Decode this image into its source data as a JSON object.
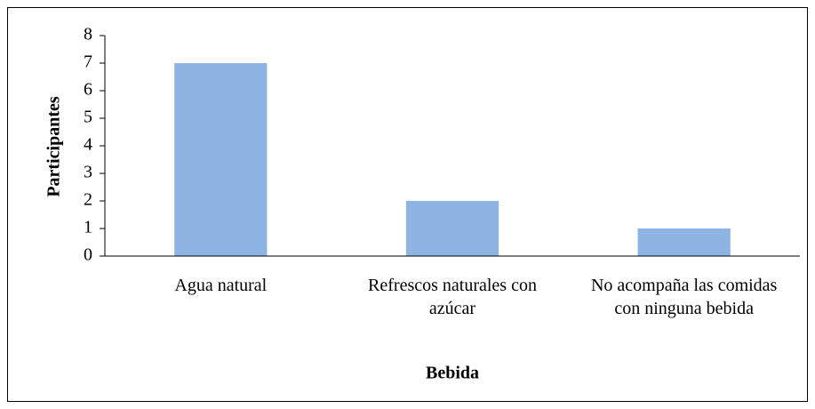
{
  "chart_data": {
    "type": "bar",
    "categories": [
      "Agua natural",
      "Refrescos naturales con azúcar",
      "No acompaña las comidas con ninguna bebida"
    ],
    "values": [
      7,
      2,
      1
    ],
    "color": "#8eb4e3",
    "ylim": [
      0,
      8
    ],
    "yticks": [
      0,
      1,
      2,
      3,
      4,
      5,
      6,
      7,
      8
    ],
    "xlabel": "Bebida",
    "ylabel": "Participantes"
  }
}
